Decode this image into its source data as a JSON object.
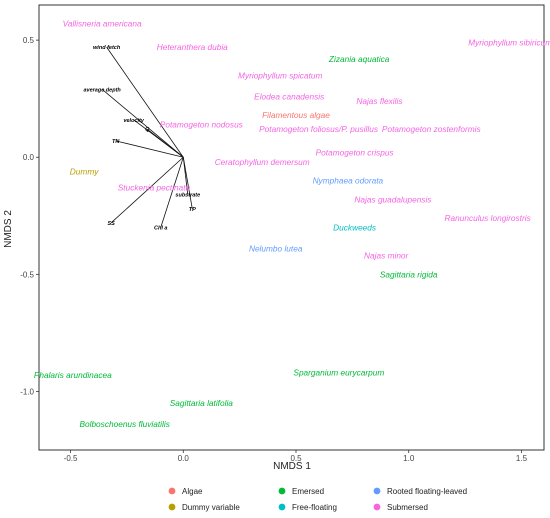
{
  "chart_data": {
    "type": "scatter",
    "title": "",
    "xlabel": "NMDS 1",
    "ylabel": "NMDS 2",
    "xlim": [
      -0.64,
      1.6
    ],
    "ylim": [
      -1.25,
      0.65
    ],
    "xticks": [
      -0.5,
      0.0,
      0.5,
      1.0,
      1.5
    ],
    "xtick_labels": [
      "-0.5",
      "0.0",
      "0.5",
      "1.0",
      "1.5"
    ],
    "yticks": [
      0.5,
      0.0,
      -0.5,
      -1.0
    ],
    "ytick_labels": [
      "0.5",
      "0.0",
      "-0.5",
      "-1.0"
    ],
    "grid": false,
    "legend_position": "bottom",
    "groups": [
      {
        "name": "Algae",
        "color": "#F8766D"
      },
      {
        "name": "Dummy variable",
        "color": "#B79F00"
      },
      {
        "name": "Emersed",
        "color": "#00BA38"
      },
      {
        "name": "Free-floating",
        "color": "#00BFC4"
      },
      {
        "name": "Rooted floating-leaved",
        "color": "#619CFF"
      },
      {
        "name": "Submersed",
        "color": "#F564E3"
      }
    ],
    "species": [
      {
        "name": "Vallisneria americana",
        "group": "Submersed",
        "x": -0.36,
        "y": 0.57
      },
      {
        "name": "Heteranthera dubia",
        "group": "Submersed",
        "x": 0.04,
        "y": 0.47
      },
      {
        "name": "Zizania aquatica",
        "group": "Emersed",
        "x": 0.78,
        "y": 0.42
      },
      {
        "name": "Myriophyllum sibiricum",
        "group": "Submersed",
        "x": 1.45,
        "y": 0.49
      },
      {
        "name": "Myriophyllum spicatum",
        "group": "Submersed",
        "x": 0.43,
        "y": 0.35
      },
      {
        "name": "Elodea canadensis",
        "group": "Submersed",
        "x": 0.47,
        "y": 0.26
      },
      {
        "name": "Najas flexilis",
        "group": "Submersed",
        "x": 0.87,
        "y": 0.24
      },
      {
        "name": "Filamentous algae",
        "group": "Algae",
        "x": 0.5,
        "y": 0.18
      },
      {
        "name": "Potamogeton nodosus",
        "group": "Submersed",
        "x": 0.08,
        "y": 0.14
      },
      {
        "name": "Potamogeton foliosus/P. pusillus",
        "group": "Submersed",
        "x": 0.6,
        "y": 0.12
      },
      {
        "name": "Potamogeton zostenformis",
        "group": "Submersed",
        "x": 1.1,
        "y": 0.12
      },
      {
        "name": "Potamogeton crispus",
        "group": "Submersed",
        "x": 0.76,
        "y": 0.02
      },
      {
        "name": "Ceratophyllum demersum",
        "group": "Submersed",
        "x": 0.35,
        "y": -0.02
      },
      {
        "name": "Dummy",
        "group": "Dummy variable",
        "x": -0.44,
        "y": -0.06
      },
      {
        "name": "Nymphaea odorata",
        "group": "Rooted floating-leaved",
        "x": 0.73,
        "y": -0.1
      },
      {
        "name": "Stuckenia pectinata",
        "group": "Submersed",
        "x": -0.13,
        "y": -0.13
      },
      {
        "name": "Najas guadalupensis",
        "group": "Submersed",
        "x": 0.93,
        "y": -0.18
      },
      {
        "name": "Ranunculus longirostris",
        "group": "Submersed",
        "x": 1.35,
        "y": -0.26
      },
      {
        "name": "Duckweeds",
        "group": "Free-floating",
        "x": 0.76,
        "y": -0.3
      },
      {
        "name": "Nelumbo lutea",
        "group": "Rooted floating-leaved",
        "x": 0.41,
        "y": -0.39
      },
      {
        "name": "Najas minor",
        "group": "Submersed",
        "x": 0.9,
        "y": -0.42
      },
      {
        "name": "Sagittaria rigida",
        "group": "Emersed",
        "x": 1.0,
        "y": -0.5
      },
      {
        "name": "Phalaris arundinacea",
        "group": "Emersed",
        "x": -0.49,
        "y": -0.93
      },
      {
        "name": "Sparganium eurycarpum",
        "group": "Emersed",
        "x": 0.69,
        "y": -0.92
      },
      {
        "name": "Sagittaria latifolia",
        "group": "Emersed",
        "x": 0.08,
        "y": -1.05
      },
      {
        "name": "Bolboschoenus fluviatilis",
        "group": "Emersed",
        "x": -0.26,
        "y": -1.14
      }
    ],
    "vectors": [
      {
        "name": "wind fetch",
        "x": -0.34,
        "y": 0.47
      },
      {
        "name": "average depth",
        "x": -0.36,
        "y": 0.29
      },
      {
        "name": "velocity",
        "x": -0.22,
        "y": 0.16
      },
      {
        "name": "Q",
        "x": -0.16,
        "y": 0.12
      },
      {
        "name": "TN",
        "x": -0.3,
        "y": 0.07
      },
      {
        "name": "substrate",
        "x": 0.02,
        "y": -0.16
      },
      {
        "name": "TP",
        "x": 0.04,
        "y": -0.22
      },
      {
        "name": "SS",
        "x": -0.32,
        "y": -0.28
      },
      {
        "name": "Chl a",
        "x": -0.1,
        "y": -0.3
      }
    ]
  }
}
